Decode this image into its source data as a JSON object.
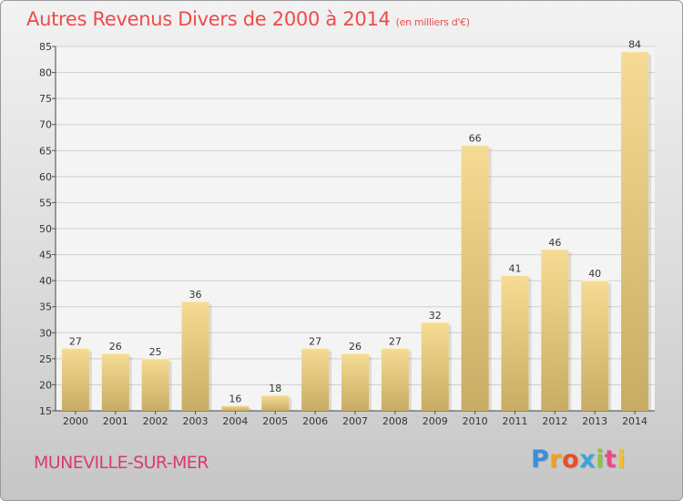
{
  "title": "Autres Revenus Divers de 2000 à 2014",
  "subtitle": "(en milliers d'€)",
  "city": "MUNEVILLE-SUR-MER",
  "logo": {
    "letters": [
      "P",
      "r",
      "o",
      "x",
      "i",
      "t",
      "i"
    ],
    "colors": [
      "#3b8fd8",
      "#f0a21a",
      "#e94e2a",
      "#3aa5d9",
      "#8cc63f",
      "#e84a8a",
      "#f2c12e"
    ]
  },
  "colors": {
    "title": "#ee4b4b",
    "city": "#d93a78",
    "bar_light": "#f6dc93",
    "bar_dark": "#c8ac64"
  },
  "chart_data": {
    "type": "bar",
    "categories": [
      "2000",
      "2001",
      "2002",
      "2003",
      "2004",
      "2005",
      "2006",
      "2007",
      "2008",
      "2009",
      "2010",
      "2011",
      "2012",
      "2013",
      "2014"
    ],
    "values": [
      27,
      26,
      25,
      36,
      16,
      18,
      27,
      26,
      27,
      32,
      66,
      41,
      46,
      40,
      84
    ],
    "ylim": [
      15,
      85
    ],
    "yticks": [
      15,
      20,
      25,
      30,
      35,
      40,
      45,
      50,
      55,
      60,
      65,
      70,
      75,
      80,
      85
    ],
    "grid": true
  }
}
